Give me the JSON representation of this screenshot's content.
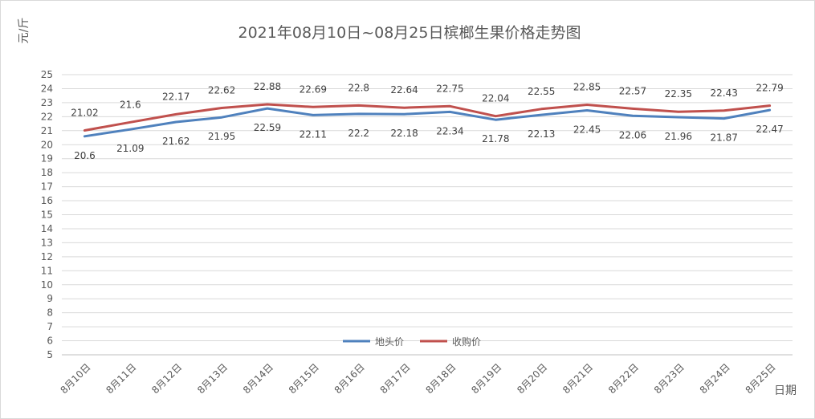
{
  "chart_data": {
    "type": "line",
    "title": "2021年08月10日~08月25日槟榔生果价格走势图",
    "ylabel": "元/斤",
    "xlabel": "日期",
    "ylim": [
      5,
      25
    ],
    "yticks": [
      5,
      6,
      7,
      8,
      9,
      10,
      11,
      12,
      13,
      14,
      15,
      16,
      17,
      18,
      19,
      20,
      21,
      22,
      23,
      24,
      25
    ],
    "categories": [
      "8月10日",
      "8月11日",
      "8月12日",
      "8月13日",
      "8月14日",
      "8月15日",
      "8月16日",
      "8月17日",
      "8月18日",
      "8月19日",
      "8月20日",
      "8月21日",
      "8月22日",
      "8月23日",
      "8月24日",
      "8月25日"
    ],
    "series": [
      {
        "name": "地头价",
        "color": "#4f81bd",
        "label_position": "below",
        "values": [
          20.6,
          21.09,
          21.62,
          21.95,
          22.59,
          22.11,
          22.2,
          22.18,
          22.34,
          21.78,
          22.13,
          22.45,
          22.06,
          21.96,
          21.87,
          22.47
        ]
      },
      {
        "name": "收购价",
        "color": "#c0504d",
        "label_position": "above",
        "values": [
          21.02,
          21.6,
          22.17,
          22.62,
          22.88,
          22.69,
          22.8,
          22.64,
          22.75,
          22.04,
          22.55,
          22.85,
          22.57,
          22.35,
          22.43,
          22.79
        ]
      }
    ],
    "grid": true,
    "legend": "bottom-center"
  }
}
